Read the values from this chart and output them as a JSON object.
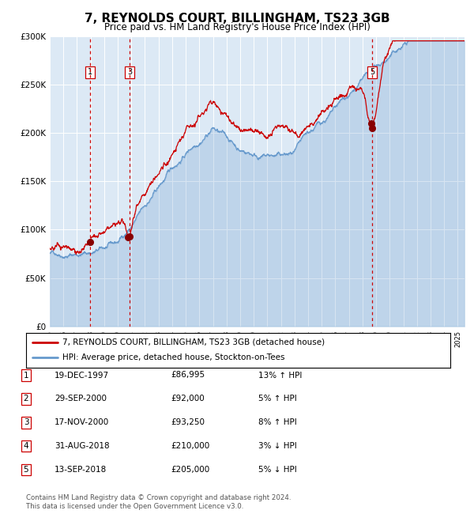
{
  "title": "7, REYNOLDS COURT, BILLINGHAM, TS23 3GB",
  "subtitle": "Price paid vs. HM Land Registry's House Price Index (HPI)",
  "background_color": "#ffffff",
  "plot_bg_color": "#dce9f5",
  "ylim": [
    0,
    300000
  ],
  "yticks": [
    0,
    50000,
    100000,
    150000,
    200000,
    250000,
    300000
  ],
  "ytick_labels": [
    "£0",
    "£50K",
    "£100K",
    "£150K",
    "£200K",
    "£250K",
    "£300K"
  ],
  "legend_label_red": "7, REYNOLDS COURT, BILLINGHAM, TS23 3GB (detached house)",
  "legend_label_blue": "HPI: Average price, detached house, Stockton-on-Tees",
  "footer": "Contains HM Land Registry data © Crown copyright and database right 2024.\nThis data is licensed under the Open Government Licence v3.0.",
  "transactions": [
    {
      "num": 1,
      "date_label": "19-DEC-1997",
      "price": 86995,
      "pct": "13%",
      "direction": "↑",
      "year_x": 1997.97
    },
    {
      "num": 2,
      "date_label": "29-SEP-2000",
      "price": 92000,
      "pct": "5%",
      "direction": "↑",
      "year_x": 2000.75
    },
    {
      "num": 3,
      "date_label": "17-NOV-2000",
      "price": 93250,
      "pct": "8%",
      "direction": "↑",
      "year_x": 2000.88
    },
    {
      "num": 4,
      "date_label": "31-AUG-2018",
      "price": 210000,
      "pct": "3%",
      "direction": "↓",
      "year_x": 2018.66
    },
    {
      "num": 5,
      "date_label": "13-SEP-2018",
      "price": 205000,
      "pct": "5%",
      "direction": "↓",
      "year_x": 2018.7
    }
  ],
  "vline_transactions": [
    1,
    3,
    5
  ],
  "red_line_color": "#cc0000",
  "blue_line_color": "#6699cc",
  "vline_color": "#cc0000",
  "dot_color": "#880000",
  "grid_color": "#ffffff",
  "xmin": 1995,
  "xmax": 2025.5,
  "seed": 42
}
